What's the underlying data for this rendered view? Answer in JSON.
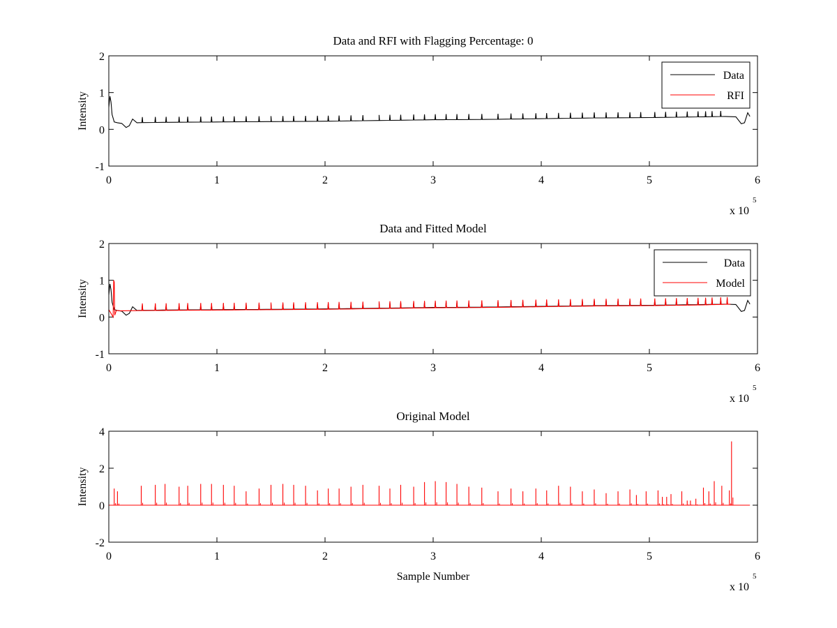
{
  "chart_data": [
    {
      "type": "line",
      "title": "Data and RFI with Flagging Percentage: 0",
      "xlabel": "",
      "ylabel": "Intensity",
      "x_exponent_label": "x 10",
      "x_exponent": "5",
      "xlim": [
        0,
        6
      ],
      "ylim": [
        -1,
        2
      ],
      "xticks": [
        "0",
        "1",
        "2",
        "3",
        "4",
        "5",
        "6"
      ],
      "yticks": [
        "-1",
        "0",
        "1",
        "2"
      ],
      "legend_position": "top-right",
      "legend": [
        "Data",
        "RFI"
      ],
      "series": [
        {
          "name": "Data",
          "color": "#000000",
          "x": [
            0,
            0.01,
            0.02,
            0.03,
            0.05,
            0.08,
            0.12,
            0.16,
            0.19,
            0.22,
            0.26,
            0.5,
            1.0,
            1.5,
            2.0,
            2.5,
            3.0,
            3.5,
            4.0,
            4.5,
            5.0,
            5.5,
            5.7,
            5.8,
            5.85,
            5.88,
            5.91,
            5.93
          ],
          "y": [
            0.6,
            0.9,
            0.75,
            0.4,
            0.2,
            0.18,
            0.16,
            0.05,
            0.1,
            0.28,
            0.18,
            0.19,
            0.2,
            0.21,
            0.22,
            0.24,
            0.26,
            0.27,
            0.29,
            0.31,
            0.32,
            0.34,
            0.35,
            0.34,
            0.15,
            0.18,
            0.45,
            0.35
          ]
        },
        {
          "name": "RFI",
          "color": "#ff0000",
          "x": [],
          "y": []
        }
      ],
      "spike_positions": [
        0.31,
        0.43,
        0.53,
        0.65,
        0.73,
        0.85,
        0.95,
        1.06,
        1.16,
        1.27,
        1.39,
        1.5,
        1.61,
        1.71,
        1.82,
        1.93,
        2.03,
        2.13,
        2.24,
        2.35,
        2.5,
        2.6,
        2.7,
        2.82,
        2.92,
        3.02,
        3.12,
        3.22,
        3.33,
        3.45,
        3.6,
        3.72,
        3.83,
        3.95,
        4.05,
        4.16,
        4.27,
        4.38,
        4.49,
        4.6,
        4.71,
        4.82,
        4.92,
        5.05,
        5.15,
        5.25,
        5.35,
        5.45,
        5.52,
        5.58,
        5.66
      ],
      "spike_height": 0.15
    },
    {
      "type": "line",
      "title": "Data and Fitted Model",
      "xlabel": "",
      "ylabel": "Intensity",
      "x_exponent_label": "x 10",
      "x_exponent": "5",
      "xlim": [
        0,
        6
      ],
      "ylim": [
        -1,
        2
      ],
      "xticks": [
        "0",
        "1",
        "2",
        "3",
        "4",
        "5",
        "6"
      ],
      "yticks": [
        "-1",
        "0",
        "1",
        "2"
      ],
      "legend_position": "top-right",
      "legend": [
        "Data",
        "Model"
      ],
      "series": [
        {
          "name": "Data",
          "color": "#000000",
          "x": [
            0,
            0.01,
            0.02,
            0.03,
            0.05,
            0.08,
            0.12,
            0.16,
            0.19,
            0.22,
            0.26,
            0.5,
            1.0,
            1.5,
            2.0,
            2.5,
            3.0,
            3.5,
            4.0,
            4.5,
            5.0,
            5.5,
            5.7,
            5.8,
            5.85,
            5.88,
            5.91,
            5.93
          ],
          "y": [
            0.6,
            0.9,
            0.75,
            0.4,
            0.2,
            0.18,
            0.16,
            0.05,
            0.1,
            0.28,
            0.18,
            0.19,
            0.2,
            0.21,
            0.22,
            0.24,
            0.26,
            0.27,
            0.29,
            0.31,
            0.32,
            0.34,
            0.35,
            0.34,
            0.15,
            0.18,
            0.45,
            0.35
          ]
        },
        {
          "name": "Model",
          "color": "#ff0000",
          "x": [
            0,
            0.04,
            0.045,
            0.05,
            0.055,
            0.07,
            0.1,
            0.5,
            1.0,
            1.5,
            2.0,
            2.5,
            3.0,
            3.5,
            4.0,
            4.5,
            5.0,
            5.5,
            5.75
          ],
          "y": [
            0.2,
            0.0,
            1.0,
            0.95,
            0.05,
            0.18,
            0.17,
            0.18,
            0.19,
            0.2,
            0.21,
            0.23,
            0.25,
            0.26,
            0.28,
            0.3,
            0.31,
            0.33,
            0.35
          ]
        }
      ],
      "spike_positions": [
        0.31,
        0.43,
        0.53,
        0.65,
        0.73,
        0.85,
        0.95,
        1.06,
        1.16,
        1.27,
        1.39,
        1.5,
        1.61,
        1.71,
        1.82,
        1.93,
        2.03,
        2.13,
        2.24,
        2.35,
        2.5,
        2.6,
        2.7,
        2.82,
        2.92,
        3.02,
        3.12,
        3.22,
        3.33,
        3.45,
        3.6,
        3.72,
        3.83,
        3.95,
        4.05,
        4.16,
        4.27,
        4.38,
        4.49,
        4.6,
        4.71,
        4.82,
        4.92,
        5.05,
        5.15,
        5.25,
        5.35,
        5.45,
        5.52,
        5.58,
        5.66,
        5.72
      ],
      "spike_height": 0.15
    },
    {
      "type": "line",
      "title": "Original Model",
      "xlabel": "Sample Number",
      "ylabel": "Intensity",
      "x_exponent_label": "x 10",
      "x_exponent": "5",
      "xlim": [
        0,
        6
      ],
      "ylim": [
        -2,
        4
      ],
      "xticks": [
        "0",
        "1",
        "2",
        "3",
        "4",
        "5",
        "6"
      ],
      "yticks": [
        "-2",
        "0",
        "2",
        "4"
      ],
      "legend_position": "none",
      "legend": [],
      "series": [
        {
          "name": "",
          "color": "#ff0000",
          "x": [
            0,
            5.93
          ],
          "y": [
            0,
            0
          ]
        }
      ],
      "peaks": {
        "x": [
          0.05,
          0.08,
          0.3,
          0.43,
          0.52,
          0.65,
          0.73,
          0.85,
          0.95,
          1.06,
          1.16,
          1.27,
          1.39,
          1.5,
          1.61,
          1.71,
          1.82,
          1.93,
          2.03,
          2.13,
          2.24,
          2.35,
          2.5,
          2.6,
          2.7,
          2.82,
          2.92,
          3.02,
          3.12,
          3.22,
          3.33,
          3.45,
          3.6,
          3.72,
          3.83,
          3.95,
          4.05,
          4.16,
          4.27,
          4.38,
          4.49,
          4.6,
          4.71,
          4.82,
          4.88,
          4.97,
          5.08,
          5.12,
          5.16,
          5.2,
          5.3,
          5.35,
          5.38,
          5.43,
          5.5,
          5.55,
          5.6,
          5.67,
          5.74,
          5.76
        ],
        "y": [
          0.9,
          0.75,
          1.05,
          1.1,
          1.15,
          1.0,
          1.05,
          1.15,
          1.15,
          1.1,
          1.05,
          0.75,
          0.9,
          1.1,
          1.15,
          1.1,
          1.05,
          0.8,
          0.9,
          0.9,
          1.0,
          1.1,
          1.05,
          0.9,
          1.1,
          1.0,
          1.25,
          1.3,
          1.25,
          1.15,
          1.0,
          0.95,
          0.75,
          0.9,
          0.75,
          0.9,
          0.8,
          1.05,
          1.0,
          0.75,
          0.85,
          0.65,
          0.75,
          0.85,
          0.55,
          0.75,
          0.8,
          0.45,
          0.45,
          0.6,
          0.75,
          0.25,
          0.25,
          0.35,
          0.95,
          0.75,
          1.3,
          1.05,
          0.8,
          3.45
        ]
      }
    }
  ]
}
